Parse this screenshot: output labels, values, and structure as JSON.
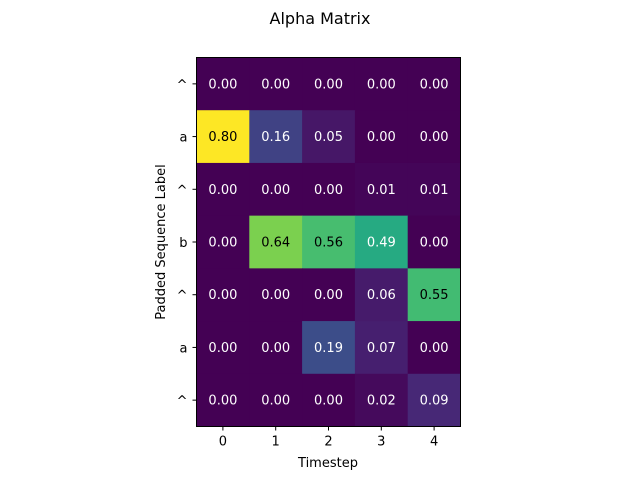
{
  "chart_data": {
    "type": "heatmap",
    "title": "Alpha Matrix",
    "xlabel": "Timestep",
    "ylabel": "Padded Sequence Label",
    "x_ticks": [
      "0",
      "1",
      "2",
      "3",
      "4"
    ],
    "y_ticks": [
      "^",
      "a",
      "^",
      "b",
      "^",
      "a",
      "^"
    ],
    "values": [
      [
        0.0,
        0.0,
        0.0,
        0.0,
        0.0
      ],
      [
        0.8,
        0.16,
        0.05,
        0.0,
        0.0
      ],
      [
        0.0,
        0.0,
        0.0,
        0.01,
        0.01
      ],
      [
        0.0,
        0.64,
        0.56,
        0.49,
        0.0
      ],
      [
        0.0,
        0.0,
        0.0,
        0.06,
        0.55
      ],
      [
        0.0,
        0.0,
        0.19,
        0.07,
        0.0
      ],
      [
        0.0,
        0.0,
        0.0,
        0.02,
        0.09
      ]
    ],
    "value_format": "2 decimals",
    "colormap": "viridis",
    "color_range": [
      0.0,
      0.8
    ],
    "grid": false,
    "legend": "none"
  }
}
